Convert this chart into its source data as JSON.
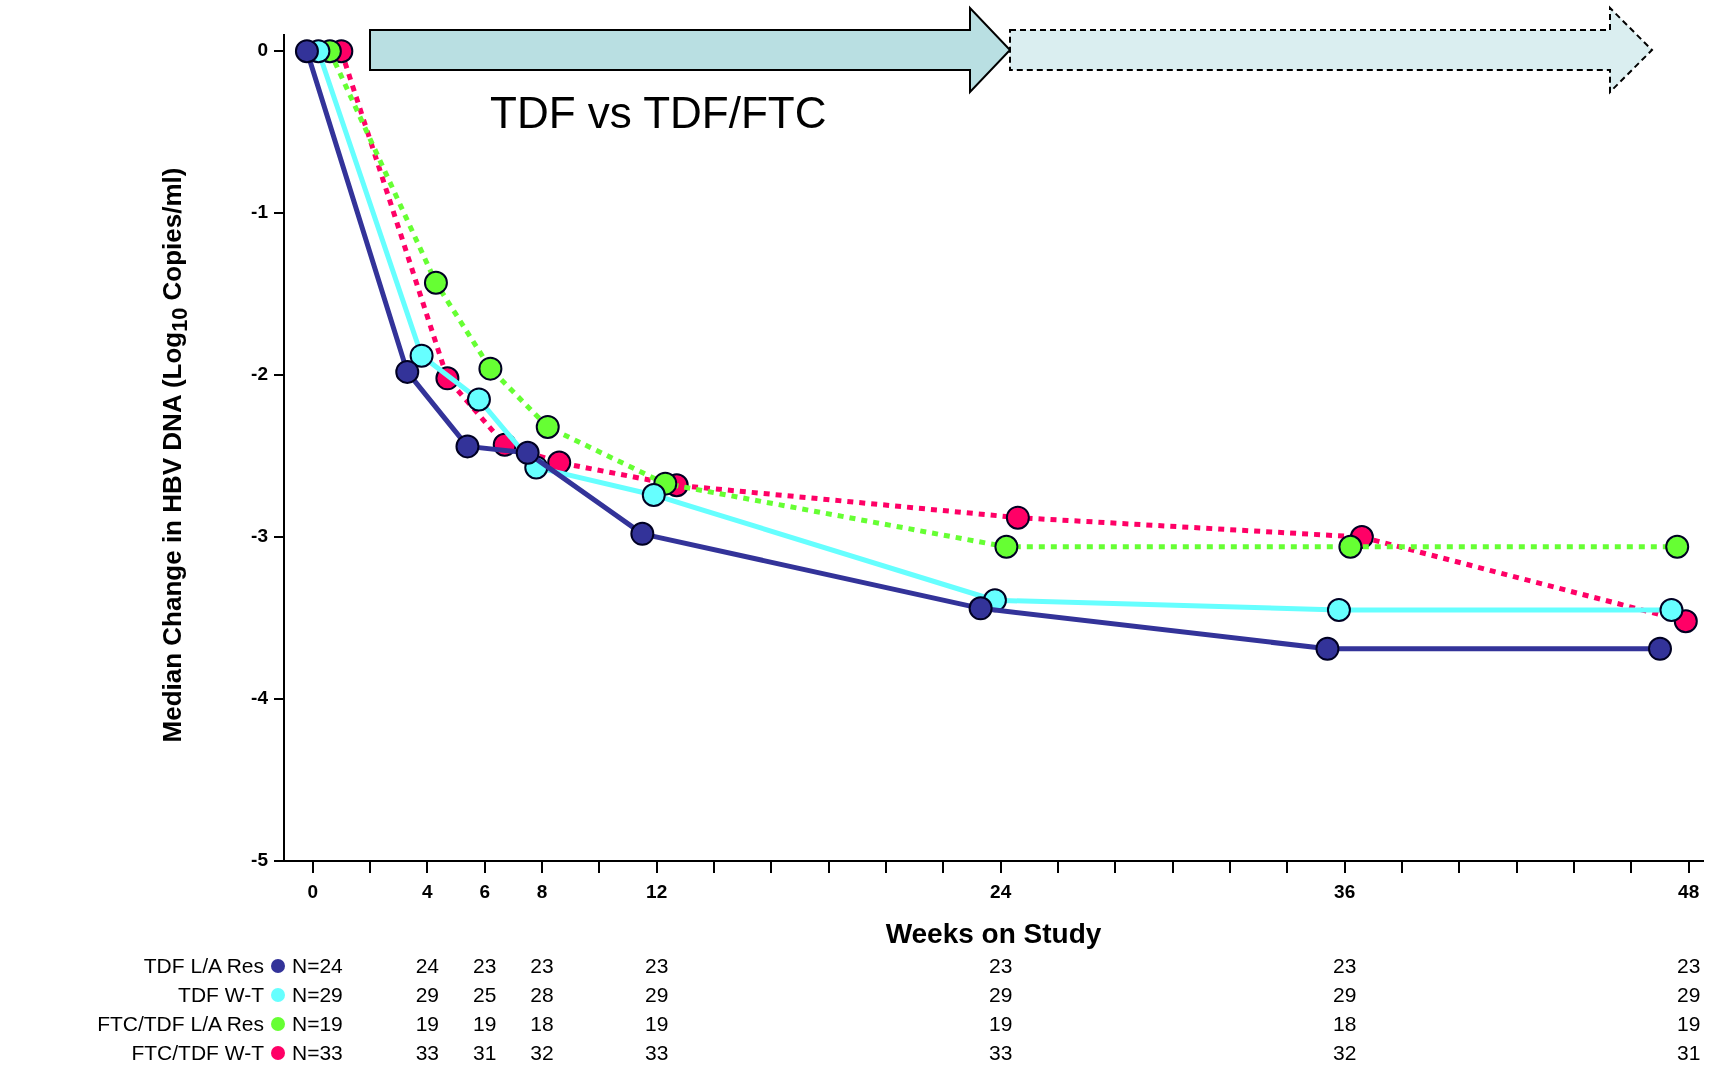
{
  "chart_data": {
    "type": "line",
    "title": "TDF vs TDF/FTC",
    "xlabel": "Weeks on Study",
    "ylabel": "Median Change in HBV DNA (Log$_{10}$ Copies/ml)",
    "xlim": [
      -1,
      48.5
    ],
    "ylim": [
      -5,
      0.1
    ],
    "xticks": [
      0,
      {
        "value": 2,
        "label": null
      },
      4,
      6,
      8,
      {
        "value": 10,
        "label": null
      },
      12,
      {
        "value": 14,
        "label": null
      },
      {
        "value": 16,
        "label": null
      },
      {
        "value": 18,
        "label": null
      },
      {
        "value": 20,
        "label": null
      },
      {
        "value": 22,
        "label": null
      },
      24,
      {
        "value": 26,
        "label": null
      },
      {
        "value": 28,
        "label": null
      },
      {
        "value": 30,
        "label": null
      },
      {
        "value": 32,
        "label": null
      },
      {
        "value": 34,
        "label": null
      },
      36,
      {
        "value": 38,
        "label": null
      },
      {
        "value": 40,
        "label": null
      },
      {
        "value": 42,
        "label": null
      },
      {
        "value": 44,
        "label": null
      },
      {
        "value": 46,
        "label": null
      },
      48
    ],
    "yticks": [
      0,
      -1,
      -2,
      -3,
      -4,
      -5
    ],
    "grid": false,
    "legend": "bottom",
    "marker": "circle",
    "series": [
      {
        "name": "TDF L/A Res",
        "color": "#333399",
        "line_style": "solid",
        "x": [
          -0.2,
          3.3,
          5.4,
          7.5,
          11.5,
          23.3,
          35.4,
          47.0
        ],
        "values": [
          0,
          -1.98,
          -2.44,
          -2.48,
          -2.98,
          -3.44,
          -3.69,
          -3.69
        ]
      },
      {
        "name": "TDF W-T",
        "color": "#66ffff",
        "line_style": "solid",
        "x": [
          0.2,
          3.8,
          5.8,
          7.8,
          11.9,
          23.8,
          35.8,
          47.4
        ],
        "values": [
          0,
          -1.88,
          -2.15,
          -2.57,
          -2.74,
          -3.39,
          -3.45,
          -3.45
        ]
      },
      {
        "name": "FTC/TDF L/A Res",
        "color": "#66ff33",
        "line_style": "dotted",
        "x": [
          0.6,
          4.3,
          6.2,
          8.2,
          12.3,
          24.2,
          36.2,
          47.6
        ],
        "values": [
          0,
          -1.43,
          -1.96,
          -2.32,
          -2.67,
          -3.06,
          -3.06,
          -3.06
        ]
      },
      {
        "name": "FTC/TDF W-T",
        "color": "#ff0066",
        "line_style": "dotted",
        "x": [
          1.0,
          4.7,
          6.7,
          8.6,
          12.7,
          24.6,
          36.6,
          47.9
        ],
        "values": [
          0,
          -2.02,
          -2.43,
          -2.54,
          -2.68,
          -2.88,
          -3.0,
          -3.52
        ]
      }
    ],
    "annotations": [
      "N=24",
      "24",
      "23",
      "23",
      "23",
      "23",
      "23",
      "23",
      "N=29",
      "29",
      "25",
      "28",
      "29",
      "29",
      "29",
      "29",
      "N=19",
      "19",
      "19",
      "18",
      "19",
      "19",
      "18",
      "19",
      "N=33",
      "33",
      "31",
      "32",
      "33",
      "33",
      "32",
      "31"
    ]
  }
}
